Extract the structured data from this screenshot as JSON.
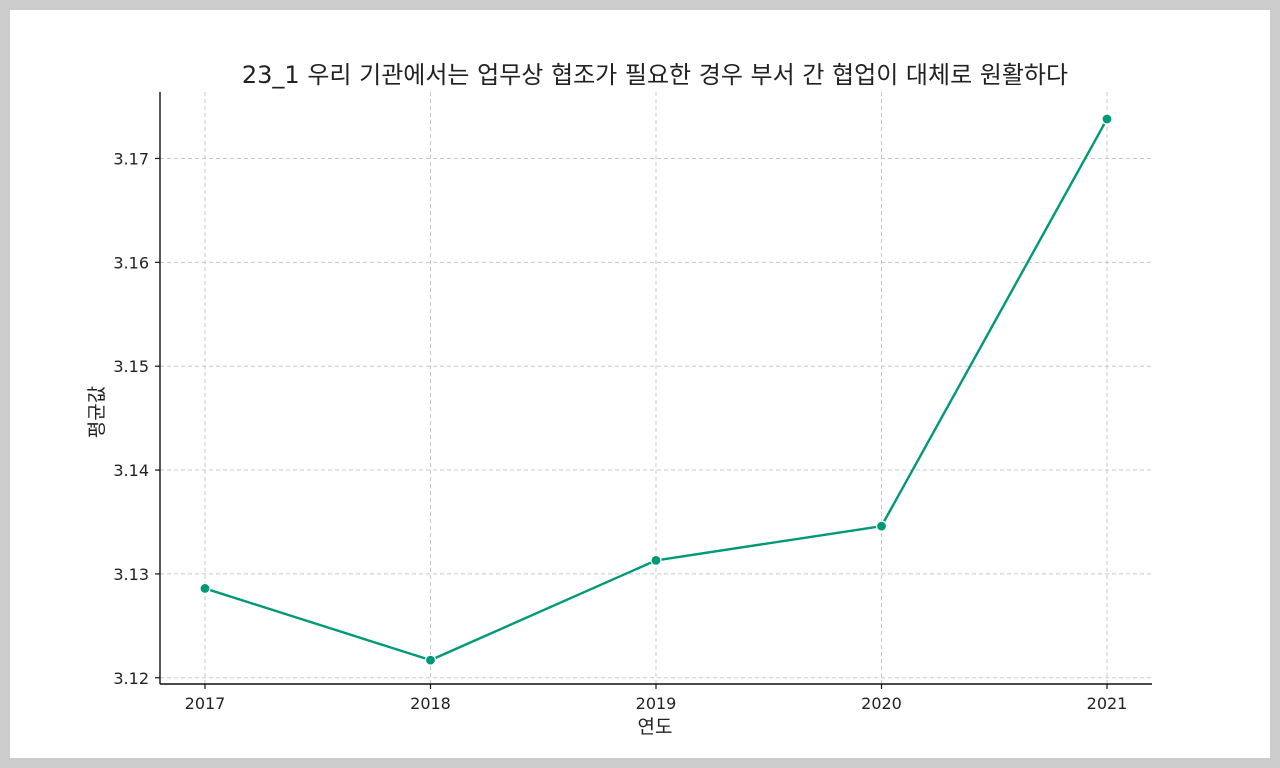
{
  "chart_data": {
    "type": "line",
    "title": "23_1 우리 기관에서는 업무상 협조가 필요한 경우 부서 간 협업이 대체로 원활하다",
    "xlabel": "연도",
    "ylabel": "평균값",
    "categories": [
      "2017",
      "2018",
      "2019",
      "2020",
      "2021"
    ],
    "series": [
      {
        "values": [
          3.1286,
          3.1217,
          3.1313,
          3.1346,
          3.1738
        ],
        "color": "#009977"
      }
    ],
    "yticks": [
      3.12,
      3.13,
      3.14,
      3.15,
      3.16,
      3.17
    ],
    "ytick_labels": [
      "3.12",
      "3.13",
      "3.14",
      "3.15",
      "3.16",
      "3.17"
    ],
    "ylim": [
      3.1194,
      3.1764
    ],
    "grid": true,
    "marker": "circle"
  }
}
